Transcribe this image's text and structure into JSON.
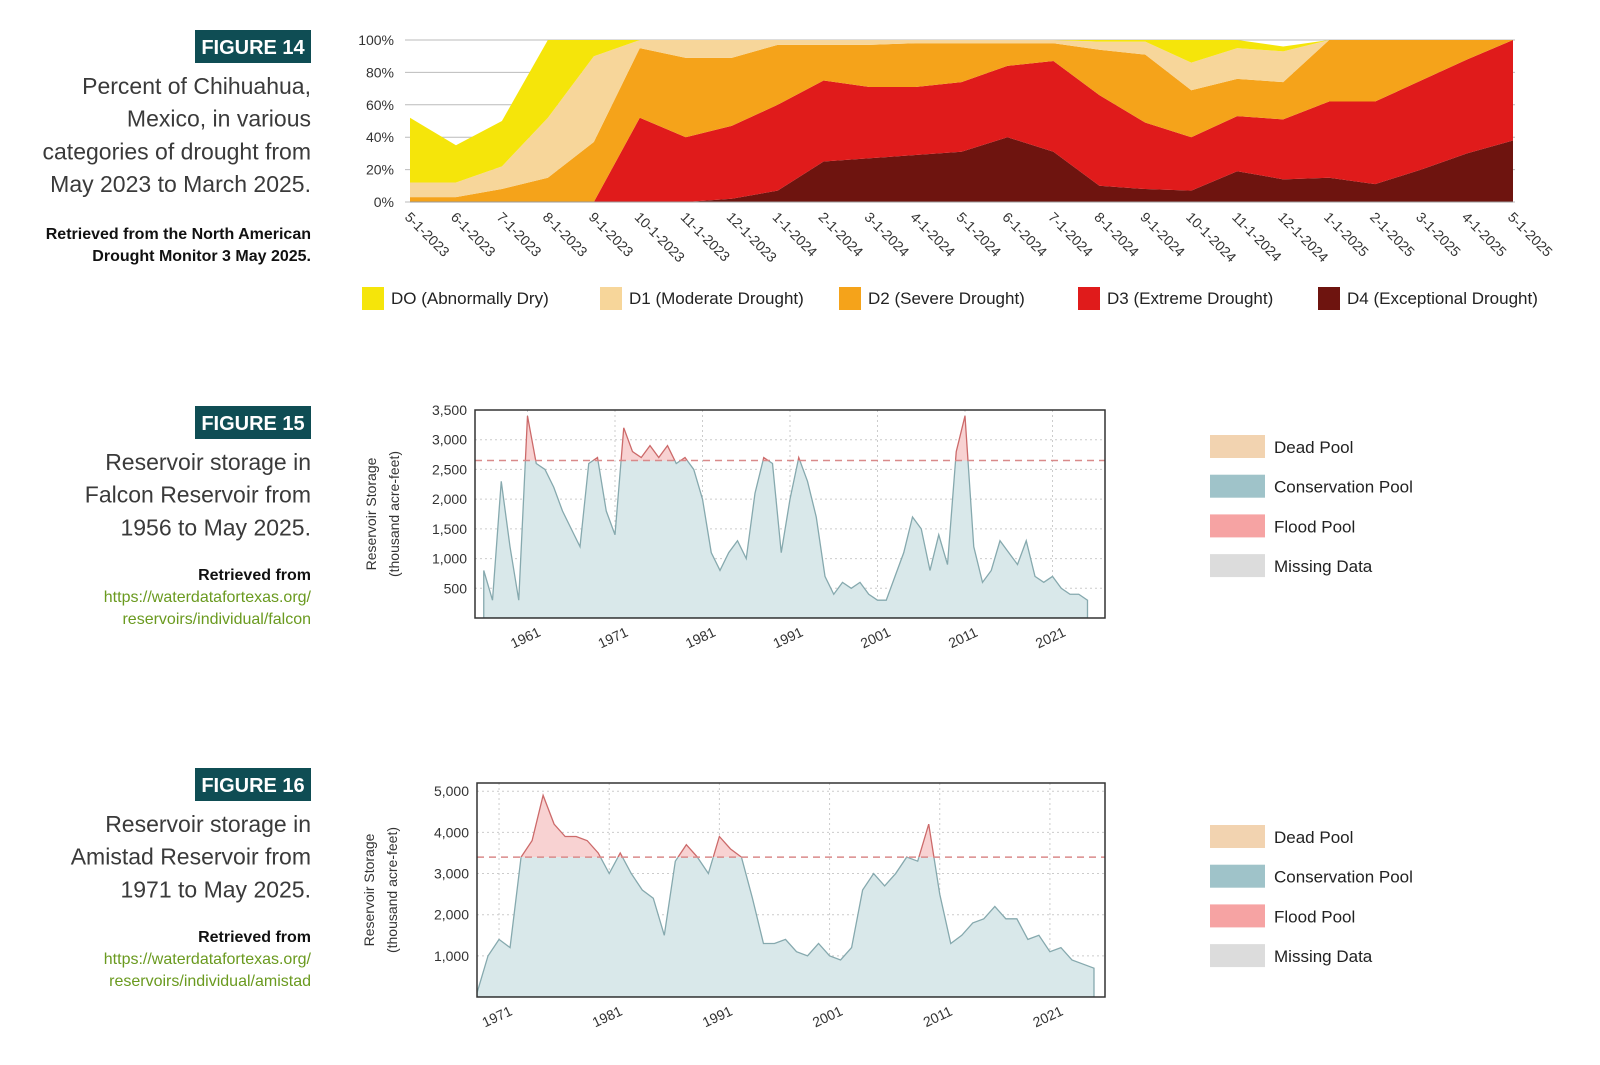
{
  "figures": [
    {
      "label": "FIGURE 14",
      "caption": [
        "Percent of Chihuahua,",
        "Mexico, in various",
        "categories of drought from",
        "May 2023 to March 2025."
      ],
      "source": [
        "Retrieved from the North American",
        "Drought Monitor 3 May 2025."
      ]
    },
    {
      "label": "FIGURE 15",
      "caption": [
        "Reservoir storage in",
        "Falcon Reservoir from",
        "1956 to May 2025."
      ],
      "source": [
        "Retrieved from"
      ],
      "url": [
        "https://waterdatafortexas.org/",
        "reservoirs/individual/falcon"
      ]
    },
    {
      "label": "FIGURE 16",
      "caption": [
        "Reservoir storage in",
        "Amistad Reservoir from",
        "1971 to May 2025."
      ],
      "source": [
        "Retrieved from"
      ],
      "url": [
        "https://waterdatafortexas.org/",
        "reservoirs/individual/amistad"
      ]
    }
  ],
  "chart_data": [
    {
      "type": "stacked_area",
      "categories": [
        "5-1-2023",
        "6-1-2023",
        "7-1-2023",
        "8-1-2023",
        "9-1-2023",
        "10-1-2023",
        "11-1-2023",
        "12-1-2023",
        "1-1-2024",
        "2-1-2024",
        "3-1-2024",
        "4-1-2024",
        "5-1-2024",
        "6-1-2024",
        "7-1-2024",
        "8-1-2024",
        "9-1-2024",
        "10-1-2024",
        "11-1-2024",
        "12-1-2024",
        "1-1-2025",
        "2-1-2025",
        "3-1-2025",
        "4-1-2025",
        "5-1-2025"
      ],
      "series": [
        {
          "name": "DO (Abnormally Dry)",
          "color": "#f5e50a",
          "values": [
            40,
            23,
            28,
            48,
            10,
            0,
            0,
            0,
            0,
            0,
            0,
            0,
            0,
            0,
            0,
            1,
            1,
            14,
            5,
            3,
            0,
            0,
            0,
            0,
            0
          ]
        },
        {
          "name": "D1 (Moderate Drought)",
          "color": "#f7d69a",
          "values": [
            9,
            9,
            14,
            37,
            53,
            5,
            11,
            11,
            3,
            3,
            3,
            2,
            2,
            2,
            2,
            5,
            8,
            17,
            19,
            19,
            0,
            0,
            0,
            0,
            0
          ]
        },
        {
          "name": "D2 (Severe Drought)",
          "color": "#f5a31a",
          "values": [
            3,
            3,
            8,
            15,
            37,
            43,
            49,
            42,
            37,
            22,
            26,
            27,
            24,
            14,
            11,
            28,
            42,
            29,
            23,
            23,
            38,
            38,
            25,
            12,
            0
          ]
        },
        {
          "name": "D3 (Extreme Drought)",
          "color": "#e01b1b",
          "values": [
            0,
            0,
            0,
            0,
            0,
            52,
            40,
            45,
            53,
            50,
            44,
            42,
            43,
            44,
            56,
            56,
            41,
            33,
            34,
            37,
            47,
            51,
            55,
            58,
            62
          ]
        },
        {
          "name": "D4 (Exceptional Drought)",
          "color": "#6e140f",
          "values": [
            0,
            0,
            0,
            0,
            0,
            0,
            0,
            2,
            7,
            25,
            27,
            29,
            31,
            40,
            31,
            10,
            8,
            7,
            19,
            14,
            15,
            11,
            20,
            30,
            38
          ]
        }
      ],
      "ylim": [
        0,
        100
      ],
      "yticks": [
        {
          "value": 0,
          "label": "0%"
        },
        {
          "value": 20,
          "label": "20%"
        },
        {
          "value": 40,
          "label": "40%"
        },
        {
          "value": 60,
          "label": "60%"
        },
        {
          "value": 80,
          "label": "80%"
        },
        {
          "value": 100,
          "label": "100%"
        }
      ],
      "grid": true
    },
    {
      "type": "area",
      "ylabel": [
        "Reservoir Storage",
        "(thousand acre-feet)"
      ],
      "x": [
        1956,
        1957,
        1958,
        1959,
        1960,
        1961,
        1962,
        1963,
        1964,
        1965,
        1966,
        1967,
        1968,
        1969,
        1970,
        1971,
        1972,
        1973,
        1974,
        1975,
        1976,
        1977,
        1978,
        1979,
        1980,
        1981,
        1982,
        1983,
        1984,
        1985,
        1986,
        1987,
        1988,
        1989,
        1990,
        1991,
        1992,
        1993,
        1994,
        1995,
        1996,
        1997,
        1998,
        1999,
        2000,
        2001,
        2002,
        2003,
        2004,
        2005,
        2006,
        2007,
        2008,
        2009,
        2010,
        2011,
        2012,
        2013,
        2014,
        2015,
        2016,
        2017,
        2018,
        2019,
        2020,
        2021,
        2022,
        2023,
        2024,
        2025
      ],
      "values": [
        800,
        300,
        2300,
        1200,
        300,
        3400,
        2600,
        2500,
        2200,
        1800,
        1500,
        1200,
        2600,
        2700,
        1800,
        1400,
        3200,
        2800,
        2700,
        2900,
        2700,
        2900,
        2600,
        2700,
        2500,
        2000,
        1100,
        800,
        1100,
        1300,
        1000,
        2100,
        2700,
        2600,
        1100,
        2000,
        2700,
        2300,
        1700,
        700,
        400,
        600,
        500,
        600,
        400,
        300,
        300,
        700,
        1100,
        1700,
        1500,
        800,
        1400,
        900,
        2800,
        3400,
        1200,
        600,
        800,
        1300,
        1100,
        900,
        1300,
        700,
        600,
        700,
        500,
        400,
        400,
        300
      ],
      "flood_level": 2650,
      "xlim": [
        1955,
        2027
      ],
      "xticks": [
        1961,
        1971,
        1981,
        1991,
        2001,
        2011,
        2021
      ],
      "ylim": [
        0,
        3500
      ],
      "yticks": [
        500,
        {
          "value": 1000,
          "label": "1,000"
        },
        {
          "value": 1500,
          "label": "1,500"
        },
        {
          "value": 2000,
          "label": "2,000"
        },
        {
          "value": 2500,
          "label": "2,500"
        },
        {
          "value": 3000,
          "label": "3,000"
        },
        {
          "value": 3500,
          "label": "3,500"
        }
      ],
      "grid": true,
      "legend": [
        {
          "name": "Dead Pool",
          "color": "#f2d3b0"
        },
        {
          "name": "Conservation Pool",
          "color": "#9fc3c9"
        },
        {
          "name": "Flood Pool",
          "color": "#f6a3a3"
        },
        {
          "name": "Missing Data",
          "color": "#dcdcdc"
        }
      ]
    },
    {
      "type": "area",
      "ylabel": [
        "Reservoir Storage",
        "(thousand acre-feet)"
      ],
      "x": [
        1969,
        1970,
        1971,
        1972,
        1973,
        1974,
        1975,
        1976,
        1977,
        1978,
        1979,
        1980,
        1981,
        1982,
        1983,
        1984,
        1985,
        1986,
        1987,
        1988,
        1989,
        1990,
        1991,
        1992,
        1993,
        1994,
        1995,
        1996,
        1997,
        1998,
        1999,
        2000,
        2001,
        2002,
        2003,
        2004,
        2005,
        2006,
        2007,
        2008,
        2009,
        2010,
        2011,
        2012,
        2013,
        2014,
        2015,
        2016,
        2017,
        2018,
        2019,
        2020,
        2021,
        2022,
        2023,
        2024,
        2025
      ],
      "values": [
        100,
        1000,
        1400,
        1200,
        3400,
        3800,
        4900,
        4200,
        3900,
        3900,
        3800,
        3500,
        3000,
        3500,
        3000,
        2600,
        2400,
        1500,
        3300,
        3700,
        3400,
        3000,
        3900,
        3600,
        3400,
        2400,
        1300,
        1300,
        1400,
        1100,
        1000,
        1300,
        1000,
        900,
        1200,
        2600,
        3000,
        2700,
        3000,
        3400,
        3300,
        4200,
        2500,
        1300,
        1500,
        1800,
        1900,
        2200,
        1900,
        1900,
        1400,
        1500,
        1100,
        1200,
        900,
        800,
        700
      ],
      "flood_level": 3400,
      "xlim": [
        1969,
        2026
      ],
      "xticks": [
        1971,
        1981,
        1991,
        2001,
        2011,
        2021
      ],
      "ylim": [
        0,
        5200
      ],
      "yticks": [
        {
          "value": 1000,
          "label": "1,000"
        },
        {
          "value": 2000,
          "label": "2,000"
        },
        {
          "value": 3000,
          "label": "3,000"
        },
        {
          "value": 4000,
          "label": "4,000"
        },
        {
          "value": 5000,
          "label": "5,000"
        }
      ],
      "grid": true,
      "legend": [
        {
          "name": "Dead Pool",
          "color": "#f2d3b0"
        },
        {
          "name": "Conservation Pool",
          "color": "#9fc3c9"
        },
        {
          "name": "Flood Pool",
          "color": "#f6a3a3"
        },
        {
          "name": "Missing Data",
          "color": "#dcdcdc"
        }
      ]
    }
  ]
}
